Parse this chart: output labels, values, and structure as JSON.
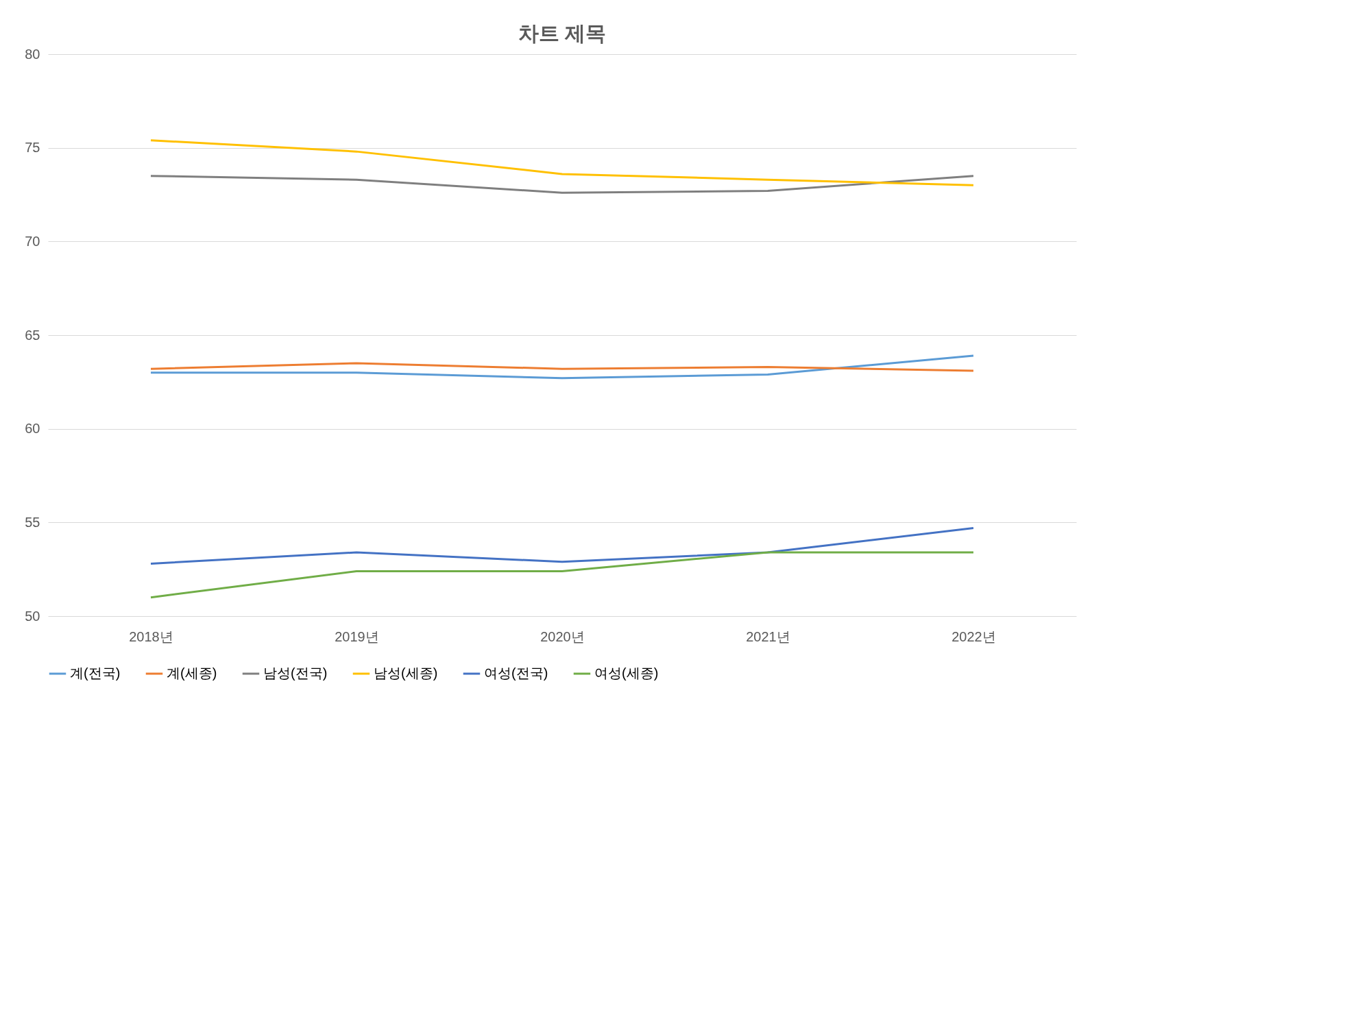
{
  "chart_data": {
    "type": "line",
    "title": "차트 제목",
    "categories": [
      "2018년",
      "2019년",
      "2020년",
      "2021년",
      "2022년"
    ],
    "series": [
      {
        "name": "계(전국)",
        "color": "#5b9bd5",
        "values": [
          63.0,
          63.0,
          62.7,
          62.9,
          63.9
        ]
      },
      {
        "name": "계(세종)",
        "color": "#ed7d31",
        "values": [
          63.2,
          63.5,
          63.2,
          63.3,
          63.1
        ]
      },
      {
        "name": "남성(전국)",
        "color": "#7f7f7f",
        "values": [
          73.5,
          73.3,
          72.6,
          72.7,
          73.5
        ]
      },
      {
        "name": "남성(세종)",
        "color": "#ffc000",
        "values": [
          75.4,
          74.8,
          73.6,
          73.3,
          73.0
        ]
      },
      {
        "name": "여성(전국)",
        "color": "#4472c4",
        "values": [
          52.8,
          53.4,
          52.9,
          53.4,
          54.7
        ]
      },
      {
        "name": "여성(세종)",
        "color": "#70ad47",
        "values": [
          51.0,
          52.4,
          52.4,
          53.4,
          53.4
        ]
      }
    ],
    "ylim": [
      50,
      80
    ],
    "yticks": [
      50,
      55,
      60,
      65,
      70,
      75,
      80
    ],
    "grid": "y",
    "legend": "bottom",
    "marker": "none",
    "line_style": "solid"
  }
}
